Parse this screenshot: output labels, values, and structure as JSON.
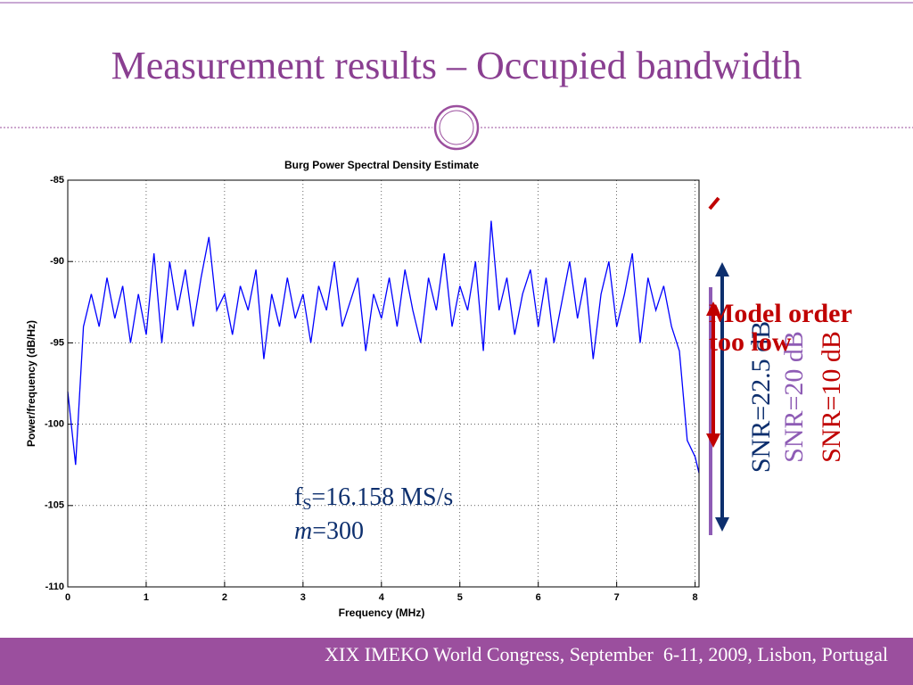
{
  "slide": {
    "title": "Measurement results – Occupied bandwidth",
    "footer": "XIX IMEKO World Congress, September  6-11, 2009, Lisbon, Portugal",
    "annotations": {
      "fs": {
        "symbol": "f",
        "subscript": "S",
        "text": "=16.158 MS/s"
      },
      "m": {
        "symbol": "m",
        "text": "=300"
      },
      "model": "Model order too low",
      "snr1": "SNR=22.5 dB",
      "snr2": "SNR=20 dB",
      "snr3": "SNR=10 dB"
    }
  },
  "chart_data": {
    "type": "line",
    "title": "Burg Power Spectral Density Estimate",
    "xlabel": "Frequency (MHz)",
    "ylabel": "Power/frequency (dB/Hz)",
    "color": "#0000ff",
    "x": [
      0,
      0.1,
      0.2,
      0.3,
      0.4,
      0.5,
      0.6,
      0.7,
      0.8,
      0.9,
      1.0,
      1.1,
      1.2,
      1.3,
      1.4,
      1.5,
      1.6,
      1.7,
      1.8,
      1.9,
      2.0,
      2.1,
      2.2,
      2.3,
      2.4,
      2.5,
      2.6,
      2.7,
      2.8,
      2.9,
      3.0,
      3.1,
      3.2,
      3.3,
      3.4,
      3.5,
      3.6,
      3.7,
      3.8,
      3.9,
      4.0,
      4.1,
      4.2,
      4.3,
      4.4,
      4.5,
      4.6,
      4.7,
      4.8,
      4.9,
      5.0,
      5.1,
      5.2,
      5.3,
      5.4,
      5.5,
      5.6,
      5.7,
      5.8,
      5.9,
      6.0,
      6.1,
      6.2,
      6.3,
      6.4,
      6.5,
      6.6,
      6.7,
      6.8,
      6.9,
      7.0,
      7.1,
      7.2,
      7.3,
      7.4,
      7.5,
      7.6,
      7.7,
      7.8,
      7.9,
      8.0,
      8.05
    ],
    "values": [
      -98,
      -102.5,
      -94,
      -92,
      -94,
      -91,
      -93.5,
      -91.5,
      -95,
      -92,
      -94.5,
      -89.5,
      -95,
      -90,
      -93,
      -90.5,
      -94,
      -91,
      -88.5,
      -93,
      -92,
      -94.5,
      -91.5,
      -93,
      -90.5,
      -96,
      -92,
      -94,
      -91,
      -93.5,
      -92,
      -95,
      -91.5,
      -93,
      -90,
      -94,
      -92.5,
      -91,
      -95.5,
      -92,
      -93.5,
      -91,
      -94,
      -90.5,
      -93,
      -95,
      -91,
      -93,
      -89.5,
      -94,
      -91.5,
      -93,
      -90,
      -95.5,
      -87.5,
      -93,
      -91,
      -94.5,
      -92,
      -90.5,
      -94,
      -91,
      -95,
      -92.5,
      -90,
      -93.5,
      -91,
      -96,
      -92,
      -90,
      -94,
      -92,
      -89.5,
      -95,
      -91,
      -93,
      -91.5,
      -94,
      -95.5,
      -101,
      -102,
      -103
    ],
    "xlim": [
      0,
      8.05
    ],
    "ylim": [
      -110,
      -85
    ],
    "xticks": [
      0,
      1,
      2,
      3,
      4,
      5,
      6,
      7,
      8
    ],
    "yticks": [
      -110,
      -105,
      -100,
      -95,
      -90,
      -85
    ],
    "grid": true
  }
}
